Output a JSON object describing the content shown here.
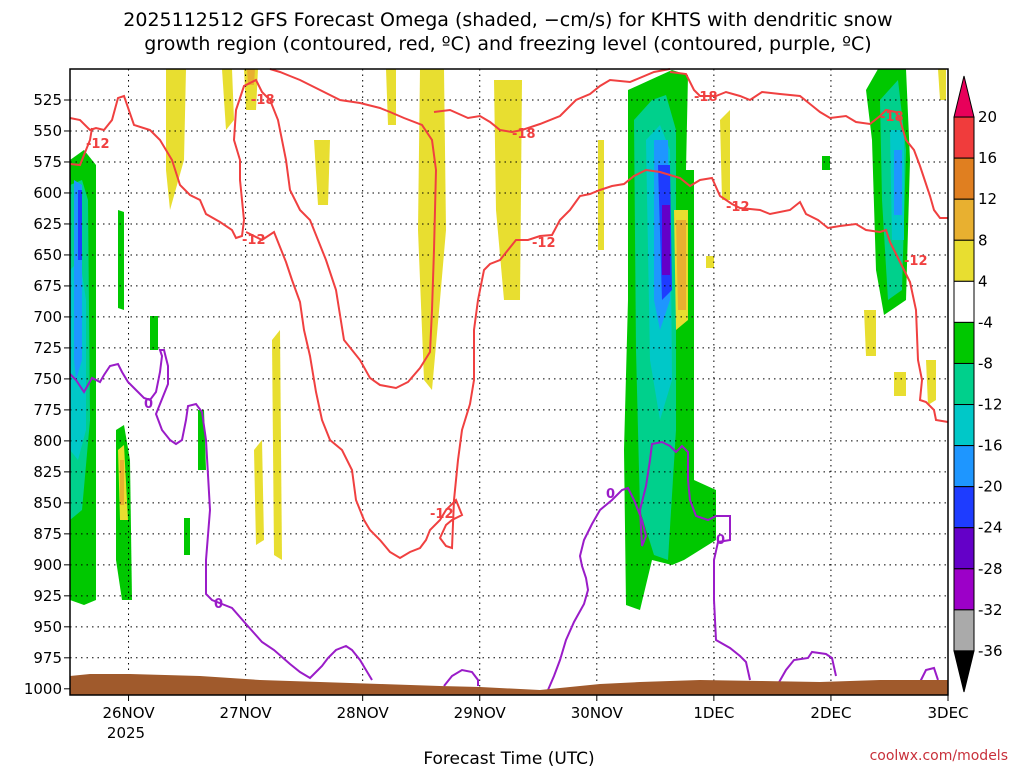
{
  "chart_data": {
    "type": "heatmap",
    "title_lines": [
      "2025112512 GFS Forecast Omega (shaded, −cm/s) for KHTS with dendritic snow",
      "growth region (contoured, red, ºC) and freezing level (contoured, purple, ºC)"
    ],
    "xlabel": "Forecast Time (UTC)",
    "credit": "coolwx.com/models",
    "x_ticks": [
      "26NOV",
      "27NOV",
      "28NOV",
      "29NOV",
      "30NOV",
      "1DEC",
      "2DEC",
      "3DEC"
    ],
    "x_year_label": "2025",
    "x_range_days": [
      -0.5,
      7
    ],
    "y_ticks": [
      "525",
      "550",
      "575",
      "600",
      "625",
      "650",
      "675",
      "700",
      "725",
      "750",
      "775",
      "800",
      "825",
      "850",
      "875",
      "900",
      "925",
      "950",
      "975",
      "1000"
    ],
    "y_range_hpa": [
      500,
      1005
    ],
    "y_axis": "pressure (hPa), inverted",
    "grid": true,
    "colorbar": {
      "levels": [
        "20",
        "16",
        "12",
        "8",
        "4",
        "-4",
        "-8",
        "-12",
        "-16",
        "-20",
        "-24",
        "-28",
        "-32",
        "-36"
      ],
      "colors": [
        "#e8005a",
        "#f03c3c",
        "#e07f20",
        "#e8b030",
        "#e8de30",
        "#ffffff",
        "#00c800",
        "#00d08c",
        "#00c8c8",
        "#1e96ff",
        "#1e3cff",
        "#6400c8",
        "#9c00c8",
        "#aaaaaa",
        "#000000"
      ]
    },
    "contour_labels_red": [
      "-18",
      "-12",
      "-12",
      "-12",
      "-18",
      "-18",
      "-12",
      "-12",
      "-18",
      "-12",
      "-12"
    ],
    "contour_labels_purple": [
      "0",
      "0",
      "0",
      "0"
    ],
    "terrain_color": "#a05a2c",
    "red_contour_color": "#f04040",
    "purple_contour_color": "#9a1cc8"
  }
}
